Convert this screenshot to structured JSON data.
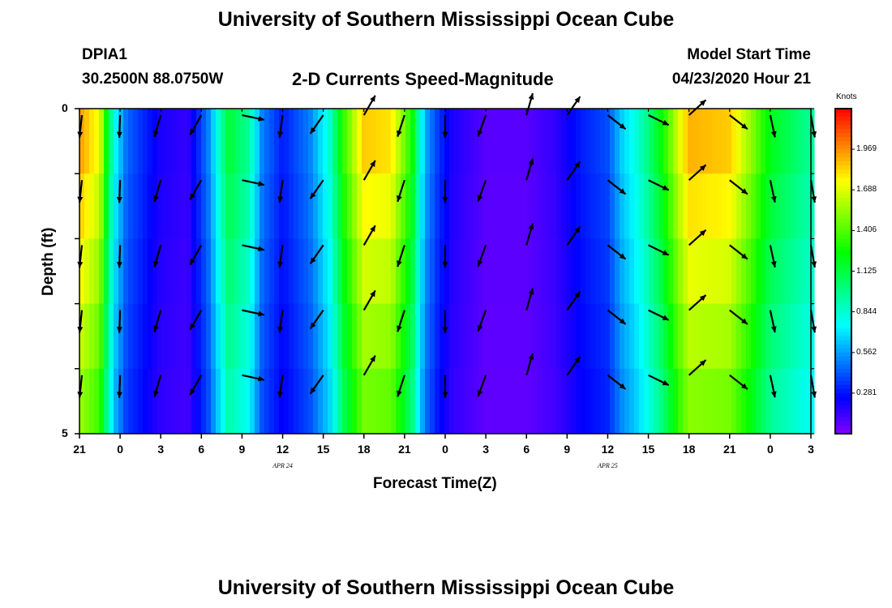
{
  "page": {
    "title_top": "University of Southern Mississippi Ocean Cube",
    "title_bottom": "University of Southern Mississippi Ocean Cube",
    "station_id": "DPIA1",
    "station_coords": "30.2500N 88.0750W",
    "model_label": "Model Start Time",
    "model_time": "04/23/2020 Hour 21"
  },
  "chart_data": {
    "type": "heatmap",
    "title": "2-D Currents Speed-Magnitude",
    "xlabel": "Forecast Time(Z)",
    "ylabel": "Depth (ft)",
    "y_ticks": [
      "0",
      "5"
    ],
    "ylim": [
      0,
      5
    ],
    "x_tick_labels": [
      "21",
      "0",
      "3",
      "6",
      "9",
      "12",
      "15",
      "18",
      "21",
      "0",
      "3",
      "6",
      "9",
      "12",
      "15",
      "18",
      "21",
      "0",
      "3"
    ],
    "date_labels": [
      {
        "text": "APR 24",
        "hour": 15
      },
      {
        "text": "APR 25",
        "hour": 39
      }
    ],
    "x_range_hours": [
      0,
      54
    ],
    "colorbar": {
      "label": "Knots",
      "ticks": [
        "1.969",
        "1.688",
        "1.406",
        "1.125",
        "0.844",
        "0.562",
        "0.281"
      ],
      "tick_values": [
        1.969,
        1.688,
        1.406,
        1.125,
        0.844,
        0.562,
        0.281
      ],
      "range": [
        0.0,
        2.25
      ]
    },
    "speed_profile_knots": [
      {
        "hour": 0,
        "speed": 1.95
      },
      {
        "hour": 1.5,
        "speed": 1.7
      },
      {
        "hour": 2.5,
        "speed": 0.8
      },
      {
        "hour": 3.5,
        "speed": 0.45
      },
      {
        "hour": 6,
        "speed": 0.2
      },
      {
        "hour": 8,
        "speed": 0.15
      },
      {
        "hour": 9.5,
        "speed": 0.5
      },
      {
        "hour": 11,
        "speed": 1.15
      },
      {
        "hour": 12.5,
        "speed": 0.95
      },
      {
        "hour": 13.5,
        "speed": 0.5
      },
      {
        "hour": 15,
        "speed": 0.3
      },
      {
        "hour": 17,
        "speed": 0.5
      },
      {
        "hour": 18.5,
        "speed": 0.85
      },
      {
        "hour": 19.5,
        "speed": 1.35
      },
      {
        "hour": 21,
        "speed": 1.85
      },
      {
        "hour": 23,
        "speed": 1.8
      },
      {
        "hour": 24.5,
        "speed": 1.3
      },
      {
        "hour": 25.5,
        "speed": 0.6
      },
      {
        "hour": 26.5,
        "speed": 0.35
      },
      {
        "hour": 27.5,
        "speed": 0.2
      },
      {
        "hour": 30,
        "speed": 0.08
      },
      {
        "hour": 33,
        "speed": 0.08
      },
      {
        "hour": 35,
        "speed": 0.15
      },
      {
        "hour": 37,
        "speed": 0.3
      },
      {
        "hour": 39,
        "speed": 0.4
      },
      {
        "hour": 40,
        "speed": 0.65
      },
      {
        "hour": 41,
        "speed": 0.8
      },
      {
        "hour": 42,
        "speed": 1.0
      },
      {
        "hour": 43,
        "speed": 1.25
      },
      {
        "hour": 44,
        "speed": 1.6
      },
      {
        "hour": 45,
        "speed": 1.9
      },
      {
        "hour": 48,
        "speed": 1.85
      },
      {
        "hour": 49.5,
        "speed": 1.55
      },
      {
        "hour": 51,
        "speed": 1.2
      },
      {
        "hour": 54,
        "speed": 0.95
      }
    ],
    "arrow_hours": [
      0,
      3,
      6,
      9,
      12,
      15,
      18,
      21,
      24,
      27,
      30,
      33,
      36,
      39,
      42,
      45,
      48,
      51,
      54
    ],
    "arrow_angles_deg": [
      96,
      92,
      106,
      120,
      12,
      98,
      125,
      300,
      108,
      90,
      110,
      286,
      305,
      38,
      26,
      318,
      38,
      78,
      80
    ],
    "arrow_depths_ft": [
      0.1,
      1.1,
      2.1,
      3.1,
      4.1
    ]
  }
}
